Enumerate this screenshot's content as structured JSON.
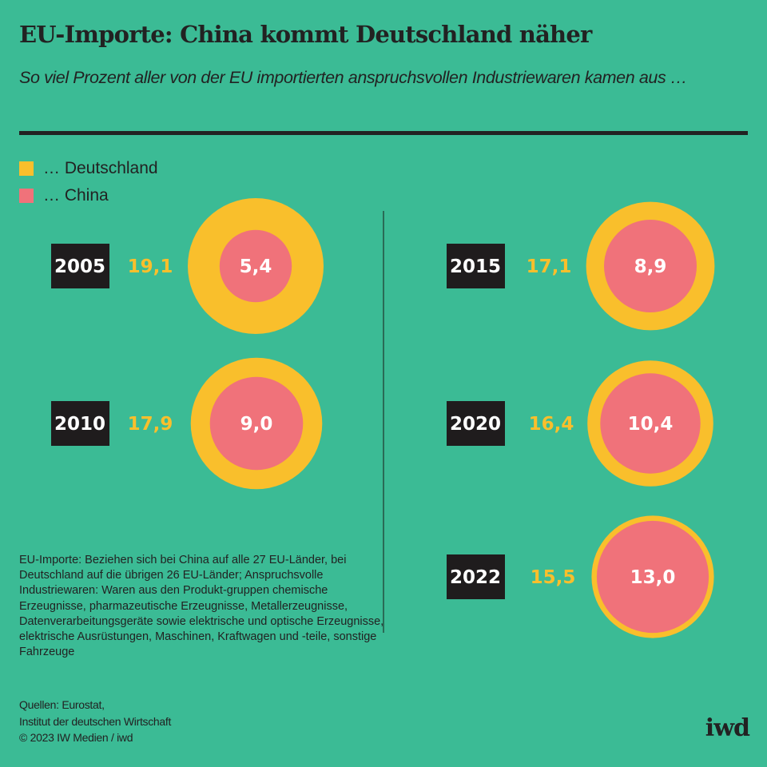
{
  "header": {
    "title": "EU-Importe: China kommt Deutschland näher",
    "subtitle": "So viel Prozent aller von der EU importierten anspruchsvollen Industriewaren kamen aus …"
  },
  "legend": [
    {
      "label": "… Deutschland",
      "color": "#f9bf2c"
    },
    {
      "label": "… China",
      "color": "#f0727a"
    }
  ],
  "colors": {
    "background": "#3bbb95",
    "germany": "#f9bf2c",
    "china": "#f0727a",
    "year_box": "#1f1c1d"
  },
  "chart_data": {
    "type": "nested-circles",
    "title": "EU-Importe: China kommt Deutschland näher",
    "unit": "Prozent",
    "categories": [
      "2005",
      "2010",
      "2015",
      "2020",
      "2022"
    ],
    "series": [
      {
        "name": "Deutschland",
        "values": [
          19.1,
          17.9,
          17.1,
          16.4,
          15.5
        ],
        "labels": [
          "19,1",
          "17,9",
          "17,1",
          "16,4",
          "15,5"
        ]
      },
      {
        "name": "China",
        "values": [
          5.4,
          9.0,
          8.9,
          10.4,
          13.0
        ],
        "labels": [
          "5,4",
          "9,0",
          "8,9",
          "10,4",
          "13,0"
        ]
      }
    ],
    "legend_position": "top-left"
  },
  "footnote": "EU-Importe: Beziehen sich bei China auf alle 27 EU-Länder, bei Deutschland auf die übrigen 26 EU-Länder; Anspruchsvolle Industriewaren: Waren aus den Produkt-gruppen chemische Erzeugnisse, pharmazeutische Erzeugnisse, Metallerzeugnisse, Datenverarbeitungsgeräte sowie elektrische und optische Erzeugnisse, elektrische Ausrüstungen, Maschinen, Kraftwagen und -teile, sonstige Fahrzeuge",
  "sources": {
    "line1": "Quellen: Eurostat,",
    "line2": "Institut der deutschen Wirtschaft",
    "line3": "© 2023 IW Medien / iwd"
  },
  "logo": "iwd"
}
